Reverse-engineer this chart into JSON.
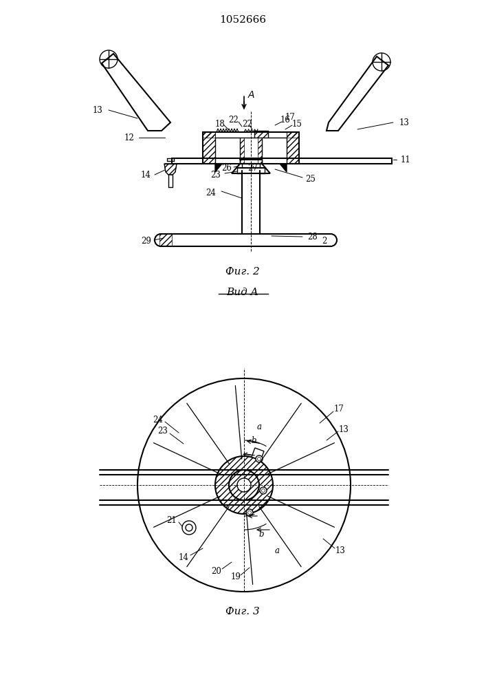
{
  "title": "1052666",
  "fig2_caption": "Фиг. 2",
  "fig3_caption": "Фиг. 3",
  "vid_caption": "Вид A",
  "background": "#ffffff",
  "line_color": "#000000"
}
